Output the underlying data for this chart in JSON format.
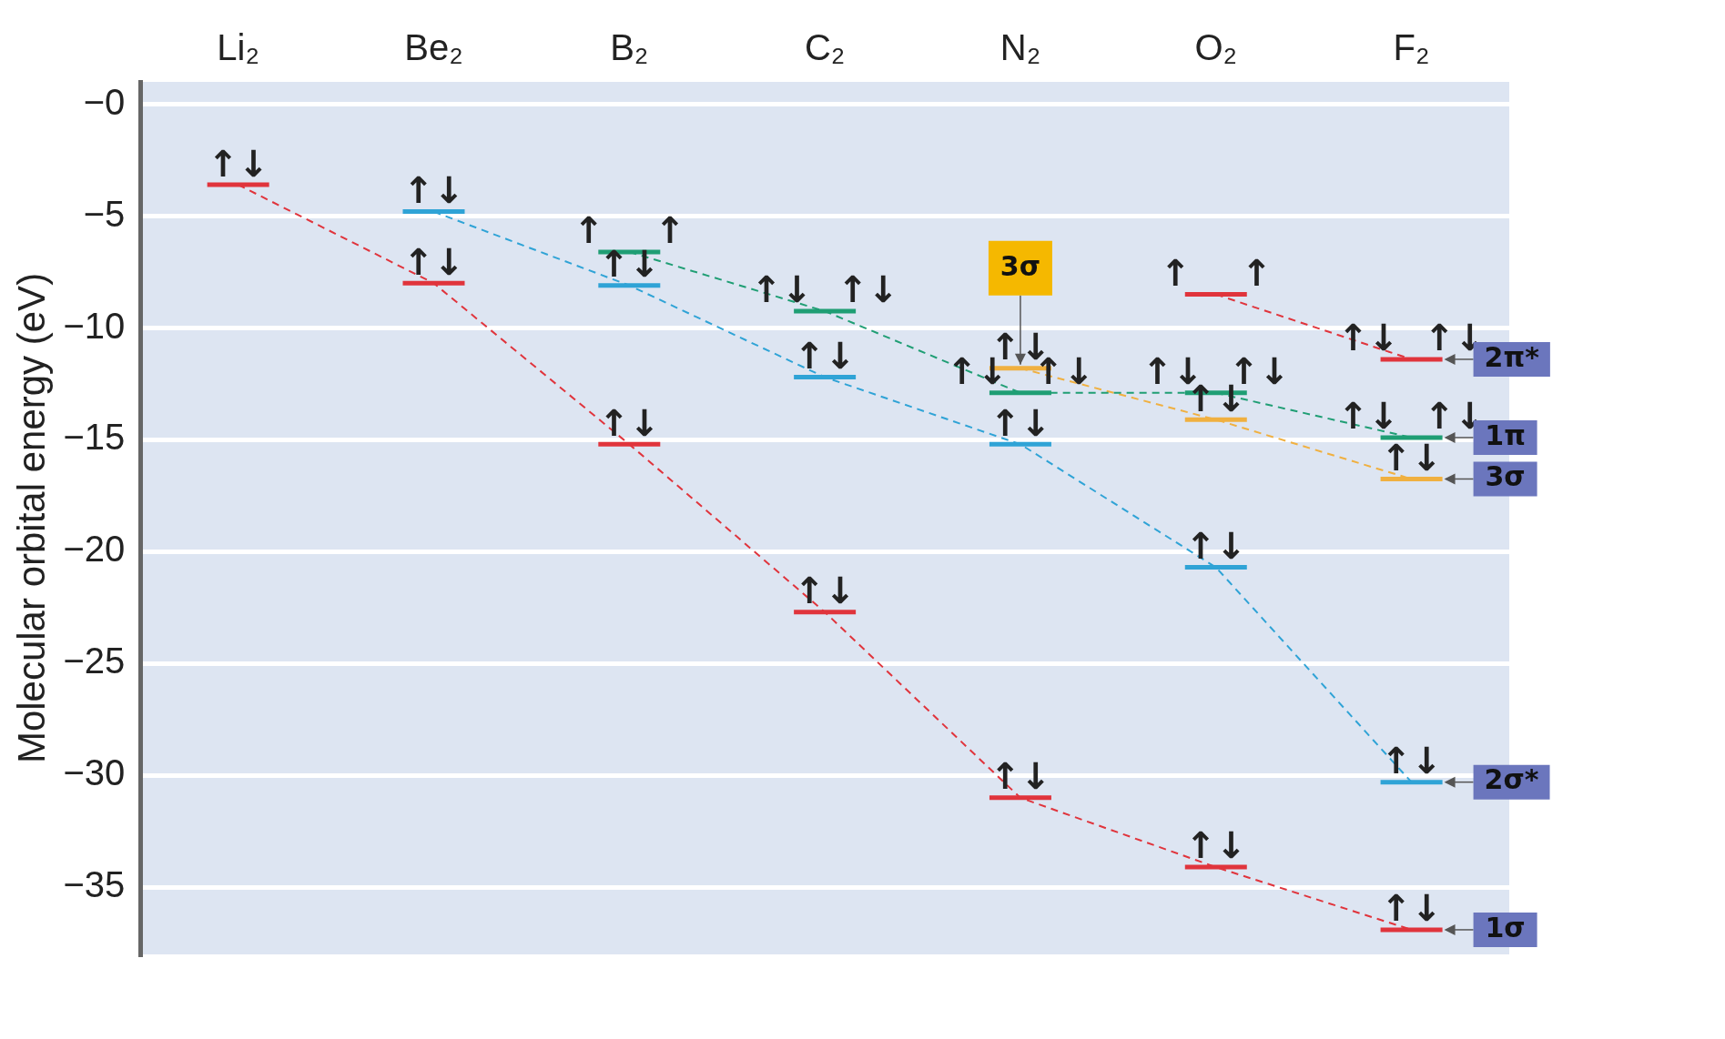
{
  "chart_data": {
    "type": "line",
    "ylabel": "Molecular orbital energy (eV)",
    "categories": [
      "Li₂",
      "Be₂",
      "B₂",
      "C₂",
      "N₂",
      "O₂",
      "F₂"
    ],
    "series": [
      {
        "color": "#e0343c",
        "values": [
          -3.6,
          -8.0,
          -15.2,
          -22.7,
          -31.0,
          -34.1,
          -36.9
        ],
        "value_labels": [
          "↑↓",
          "↑↓",
          "↑↓",
          "↑↓",
          "↑↓",
          "↑↓",
          "↑↓"
        ]
      },
      {
        "color": "#2fa3d6",
        "values": [
          null,
          -4.8,
          -8.1,
          -12.2,
          -15.2,
          -20.7,
          -30.3
        ],
        "value_labels": [
          null,
          "↑↓",
          "↑↓",
          "↑↓",
          "↑↓",
          "↑↓",
          "↑↓"
        ]
      },
      {
        "color": "#1f9e74",
        "values": [
          null,
          null,
          -6.6,
          -9.25,
          -12.9,
          -12.9,
          -14.9
        ],
        "value_labels": [
          null,
          null,
          "↑    ↑",
          "↑↓  ↑↓",
          "↑↓  ↑↓",
          "↑↓  ↑↓",
          "↑↓  ↑↓"
        ]
      },
      {
        "color": "#f0b040",
        "values": [
          null,
          null,
          null,
          null,
          -11.8,
          -14.1,
          -16.75
        ],
        "value_labels": [
          null,
          null,
          null,
          null,
          "↑↓",
          "↑↓",
          "↑↓"
        ]
      },
      {
        "color": "#e0343c",
        "values": [
          null,
          null,
          null,
          null,
          null,
          -8.5,
          -11.4
        ],
        "value_labels": [
          null,
          null,
          null,
          null,
          null,
          "↑    ↑",
          "↑↓  ↑↓"
        ]
      }
    ],
    "ylim": [
      -38,
      1
    ],
    "yticks": [
      {
        "value": 0,
        "label": "−0"
      },
      {
        "value": -5,
        "label": "−5"
      },
      {
        "value": -10,
        "label": "−10"
      },
      {
        "value": -15,
        "label": "−15"
      },
      {
        "value": -20,
        "label": "−20"
      },
      {
        "value": -25,
        "label": "−25"
      },
      {
        "value": -30,
        "label": "−30"
      },
      {
        "value": -35,
        "label": "−35"
      }
    ],
    "grid": "y",
    "line_style": "dashed",
    "legend": false,
    "annotations": [
      {
        "text": "3σ",
        "x": "N₂",
        "y": -11.8
      },
      {
        "text": "2π*",
        "x": "F₂",
        "y": -11.4
      },
      {
        "text": "1π",
        "x": "F₂",
        "y": -14.9
      },
      {
        "text": "3σ",
        "x": "F₂",
        "y": -16.75
      },
      {
        "text": "2σ*",
        "x": "F₂",
        "y": -30.3
      },
      {
        "text": "1σ",
        "x": "F₂",
        "y": -36.9
      }
    ]
  }
}
